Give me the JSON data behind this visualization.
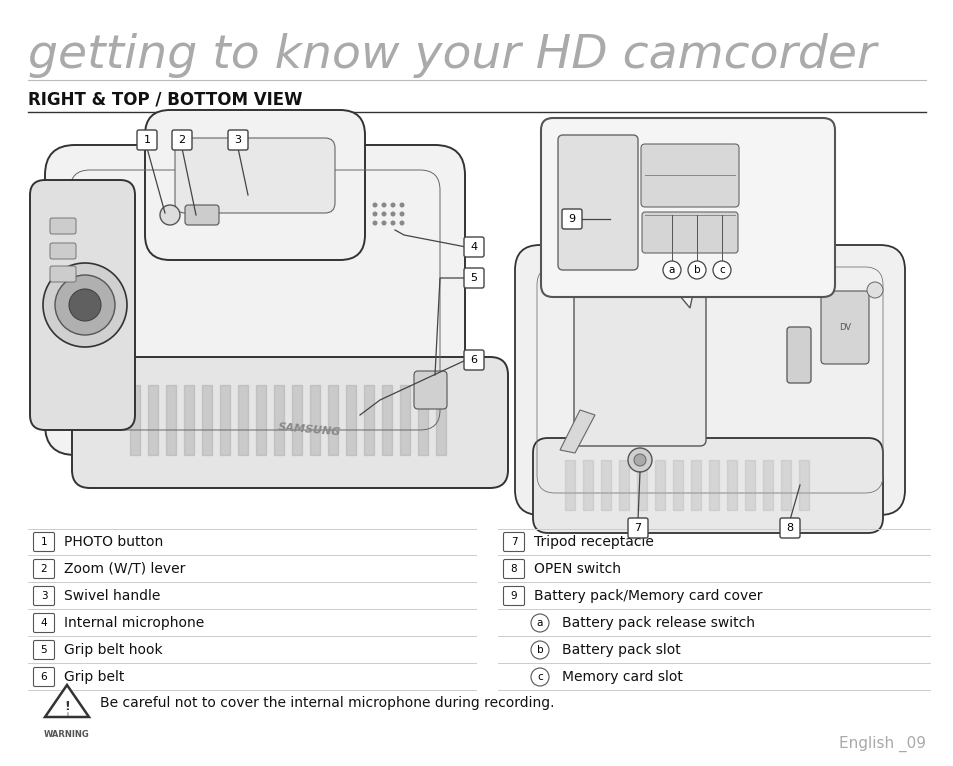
{
  "title": "getting to know your HD camcorder",
  "section_title": "RIGHT & TOP / BOTTOM VIEW",
  "left_items": [
    {
      "num": "1",
      "text": "PHOTO button"
    },
    {
      "num": "2",
      "text": "Zoom (W/T) lever"
    },
    {
      "num": "3",
      "text": "Swivel handle"
    },
    {
      "num": "4",
      "text": "Internal microphone"
    },
    {
      "num": "5",
      "text": "Grip belt hook"
    },
    {
      "num": "6",
      "text": "Grip belt"
    }
  ],
  "right_items": [
    {
      "num": "7",
      "text": "Tripod receptacle"
    },
    {
      "num": "8",
      "text": "OPEN switch"
    },
    {
      "num": "9",
      "text": "Battery pack/Memory card cover"
    },
    {
      "sub": "a",
      "text": "Battery pack release switch"
    },
    {
      "sub": "b",
      "text": "Battery pack slot"
    },
    {
      "sub": "c",
      "text": "Memory card slot"
    }
  ],
  "warning_text": "Be careful not to cover the internal microphone during recording.",
  "page_label": "English _09",
  "bg_color": "#ffffff",
  "title_gray": "#aaaaaa",
  "section_color": "#111111",
  "list_line_color": "#cccccc",
  "list_text_color": "#111111",
  "page_num_color": "#aaaaaa"
}
